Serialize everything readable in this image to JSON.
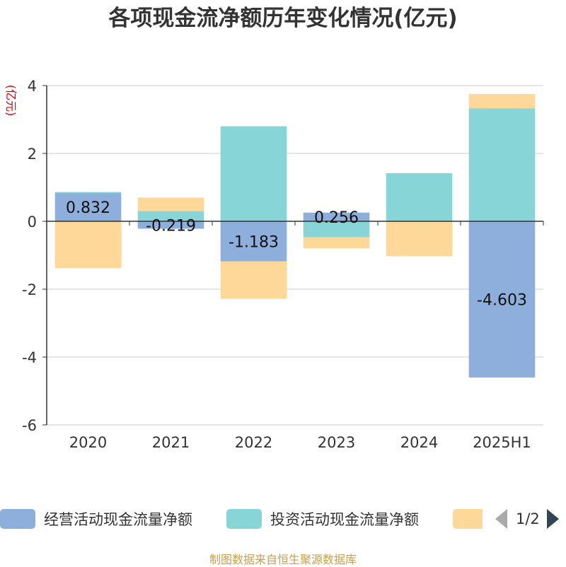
{
  "title": "各项现金流净额历年变化情况(亿元)",
  "source": "制图数据来自恒生聚源数据库",
  "chart_data": {
    "type": "bar",
    "stacked": true,
    "ylabel": "(亿元)",
    "ylim": [
      -6,
      4
    ],
    "yticks": [
      4,
      2,
      0,
      -2,
      -4,
      -6
    ],
    "grid": true,
    "categories": [
      "2020",
      "2021",
      "2022",
      "2023",
      "2024",
      "2025H1"
    ],
    "series": [
      {
        "name": "经营活动现金流量净额",
        "color": "#8eaedb",
        "values": [
          0.832,
          -0.219,
          -1.183,
          0.256,
          0.0,
          -4.603
        ],
        "labels": [
          "0.832",
          "-0.219",
          "-1.183",
          "0.256",
          "",
          "-4.603"
        ]
      },
      {
        "name": "投资活动现金流量净额",
        "color": "#88d5d8",
        "values": [
          0.03,
          0.3,
          2.8,
          -0.47,
          1.42,
          3.33
        ],
        "labels": [
          "",
          "",
          "",
          "",
          "",
          ""
        ]
      },
      {
        "name": "",
        "color": "#fdd898",
        "values": [
          -1.38,
          0.4,
          -1.1,
          -0.33,
          -1.03,
          0.42
        ],
        "labels": [
          "",
          "",
          "",
          "",
          "",
          ""
        ]
      }
    ],
    "legend": {
      "position": "bottom",
      "page": "1/2"
    }
  }
}
